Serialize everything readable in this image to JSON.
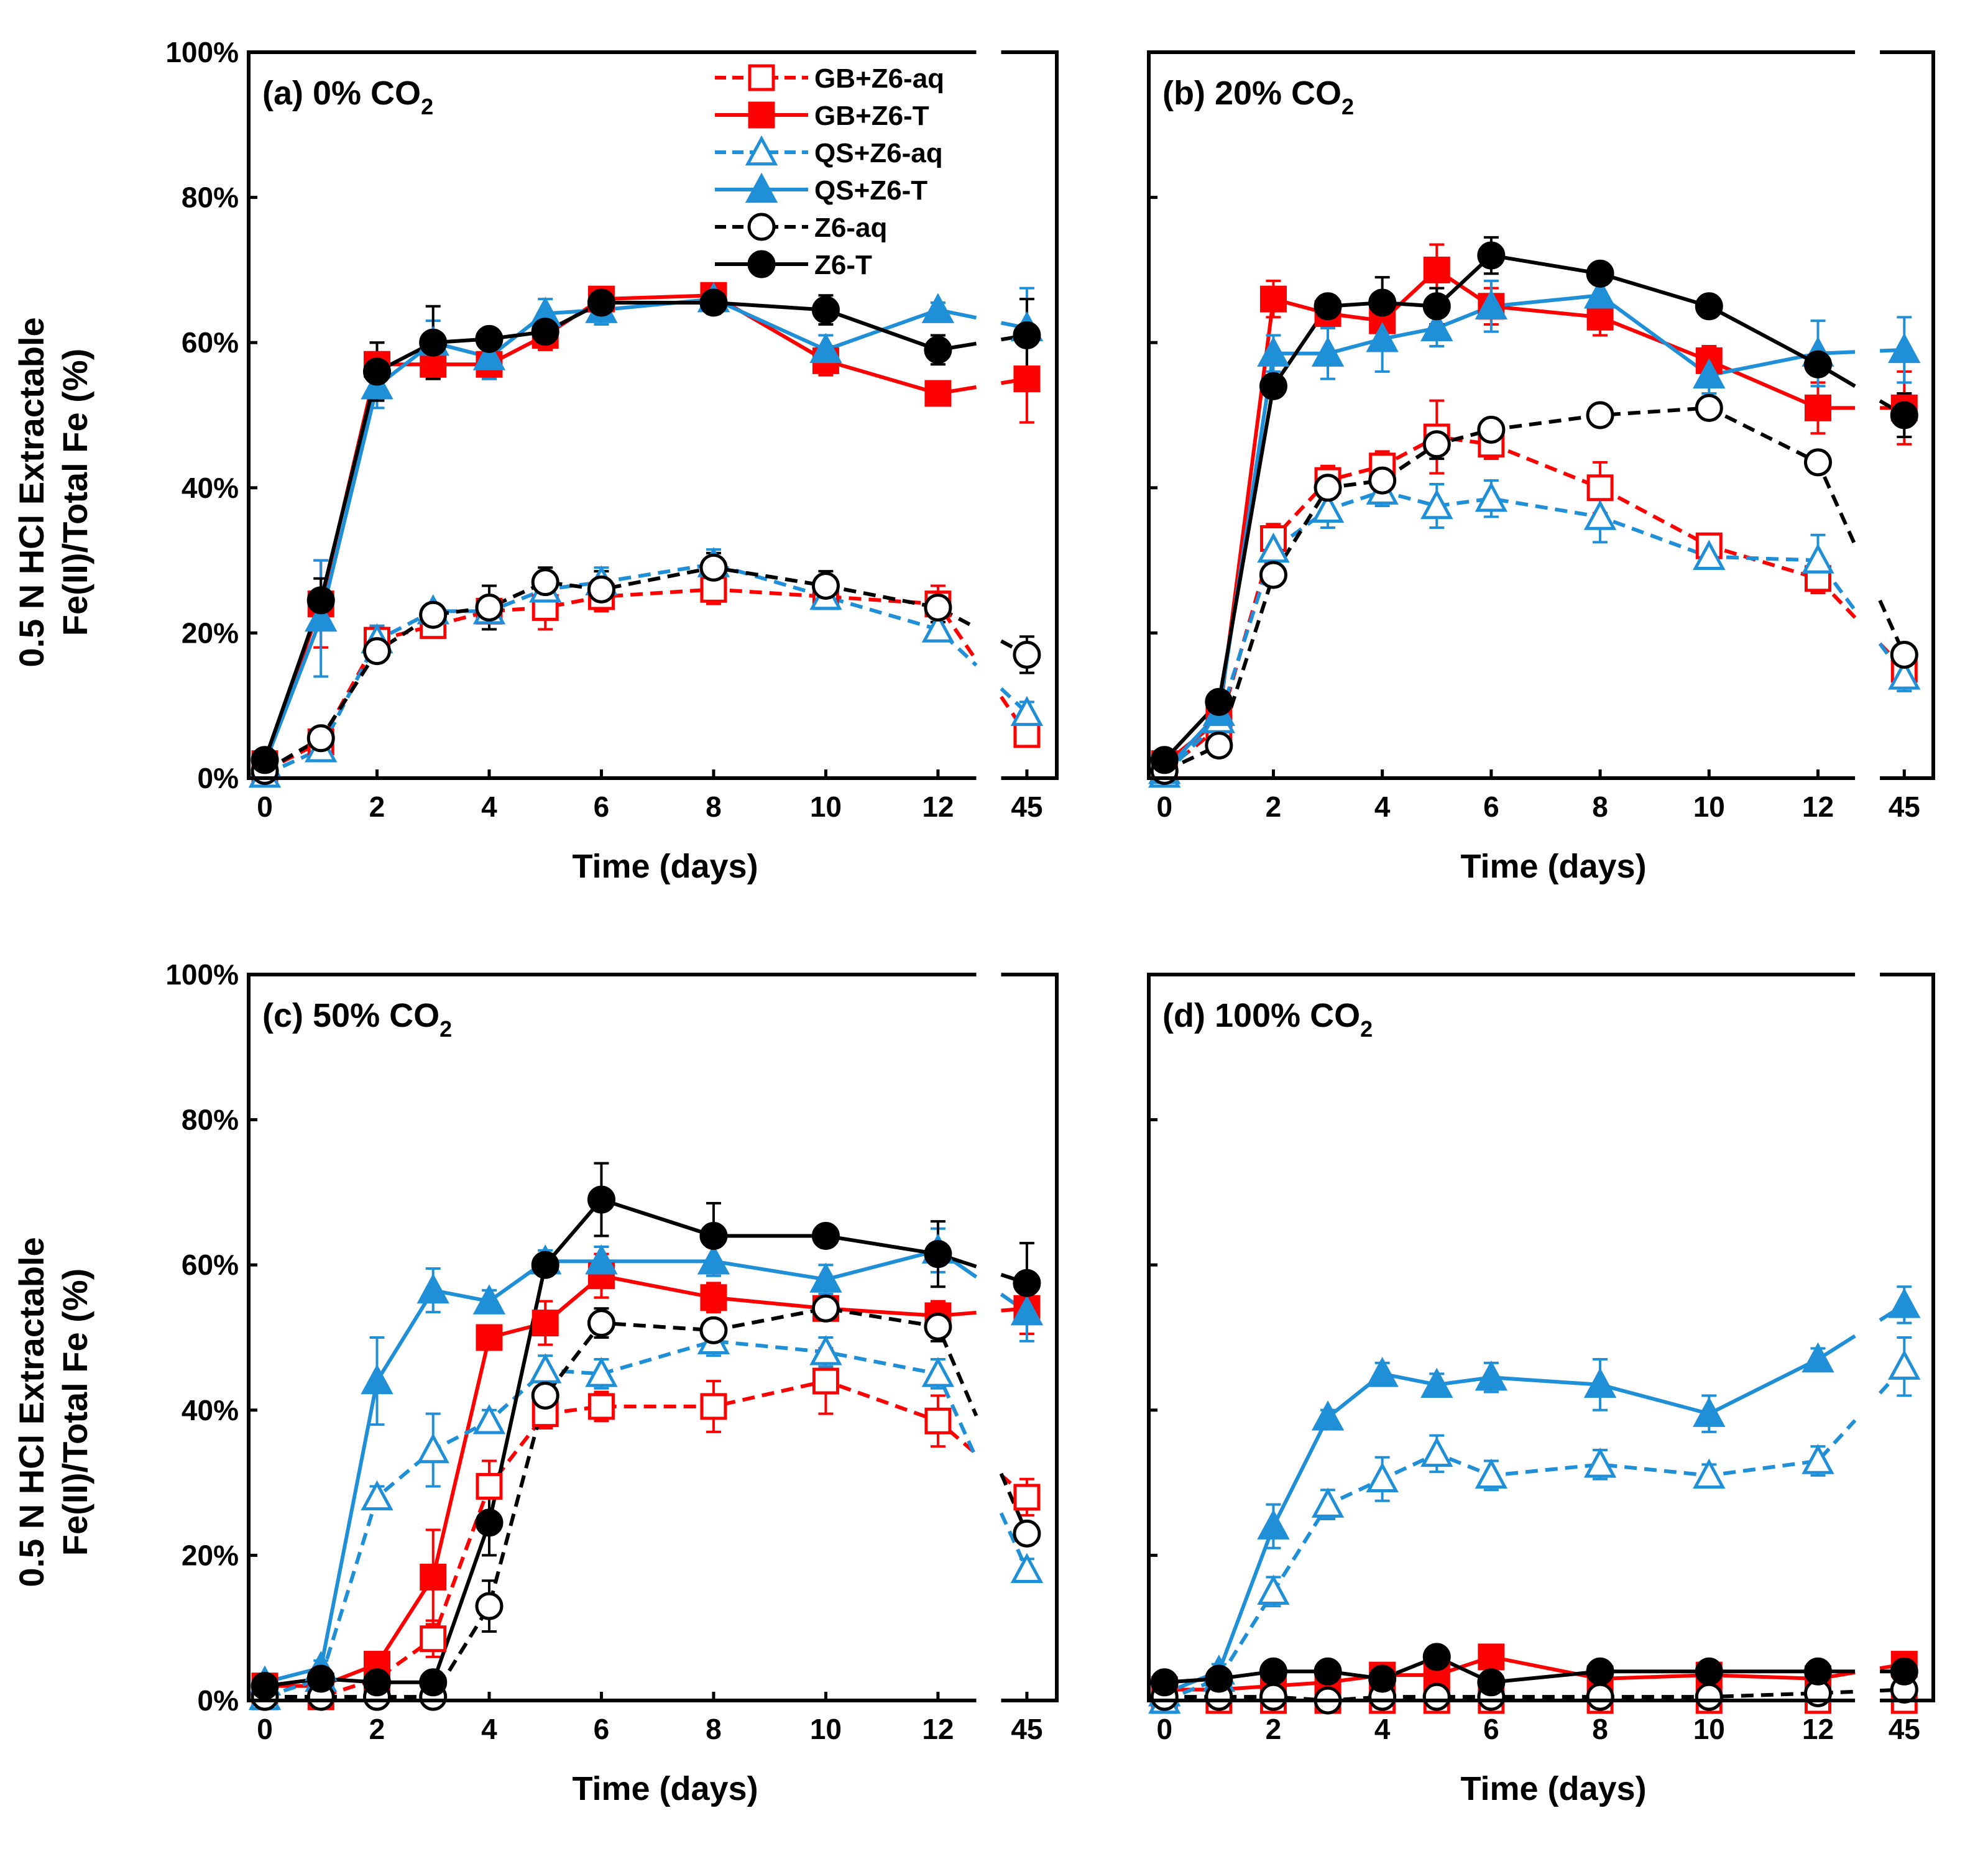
{
  "figure": {
    "ylabel_line1": "0.5 N HCl Extractable",
    "ylabel_line2": "Fe(II)/Total Fe (%)",
    "xlabel": "Time (days)",
    "y_ticks": [
      "0%",
      "20%",
      "40%",
      "60%",
      "80%",
      "100%"
    ],
    "x_ticks": [
      "0",
      "2",
      "4",
      "6",
      "8",
      "10",
      "12",
      "45"
    ]
  },
  "legend": {
    "items": [
      {
        "name": "GB+Z6-aq",
        "color": "#ff0000",
        "dash": true,
        "marker": "square",
        "filled": false
      },
      {
        "name": "GB+Z6-T",
        "color": "#ff0000",
        "dash": false,
        "marker": "square",
        "filled": true
      },
      {
        "name": "QS+Z6-aq",
        "color": "#1f8fd8",
        "dash": true,
        "marker": "triangle",
        "filled": false
      },
      {
        "name": "QS+Z6-T",
        "color": "#1f8fd8",
        "dash": false,
        "marker": "triangle",
        "filled": true
      },
      {
        "name": "Z6-aq",
        "color": "#000000",
        "dash": true,
        "marker": "circle",
        "filled": false
      },
      {
        "name": "Z6-T",
        "color": "#000000",
        "dash": false,
        "marker": "circle",
        "filled": true
      }
    ]
  },
  "chart_data": [
    {
      "type": "line",
      "title_main": "(a) 0% CO",
      "title_sub": "2",
      "xlabel": "Time (days)",
      "ylabel": "0.5 N HCl Extractable Fe(II)/Total Fe (%)",
      "ylim": [
        0,
        100
      ],
      "x_axis": "broken: 0-12 linear, then 45",
      "x": [
        0,
        1,
        2,
        3,
        4,
        5,
        6,
        8,
        10,
        12,
        45
      ],
      "series": [
        {
          "name": "GB+Z6-aq",
          "values": [
            1,
            5,
            19,
            21,
            23,
            23.5,
            25,
            26,
            25,
            24,
            6
          ],
          "errors": [
            1,
            1,
            1,
            1,
            1.5,
            3,
            2,
            2,
            1.5,
            2.5,
            1
          ]
        },
        {
          "name": "GB+Z6-T",
          "values": [
            2,
            24,
            57,
            57,
            57,
            61,
            66,
            66.5,
            57.5,
            53,
            55
          ],
          "errors": [
            1,
            6,
            3,
            2,
            2,
            2,
            1.5,
            1.5,
            2,
            1.5,
            6
          ]
        },
        {
          "name": "QS+Z6-aq",
          "values": [
            0.5,
            4,
            19,
            23,
            23,
            26,
            27,
            29.5,
            25,
            20.5,
            9
          ],
          "errors": [
            0.5,
            1.5,
            2,
            1,
            1,
            2,
            2,
            2,
            1.5,
            1.5,
            1.5
          ]
        },
        {
          "name": "QS+Z6-T",
          "values": [
            2,
            22,
            54,
            60,
            58,
            64,
            64.5,
            66,
            59,
            64.5,
            62
          ],
          "errors": [
            1,
            8,
            3,
            3,
            3,
            2,
            2,
            1.5,
            2,
            1,
            5.5
          ]
        },
        {
          "name": "Z6-aq",
          "values": [
            1,
            5.5,
            17.5,
            22.5,
            23.5,
            27,
            26,
            29,
            26.5,
            23.5,
            17
          ],
          "errors": [
            0.5,
            1,
            1.5,
            1,
            3,
            2,
            2.5,
            2,
            2,
            2,
            2.5
          ]
        },
        {
          "name": "Z6-T",
          "values": [
            2.5,
            24.5,
            56,
            60,
            60.5,
            61.5,
            65.5,
            65.5,
            64.5,
            59,
            61
          ],
          "errors": [
            1,
            3,
            4,
            5,
            1,
            1.5,
            1.5,
            1.5,
            2,
            2,
            5
          ]
        }
      ]
    },
    {
      "type": "line",
      "title_main": "(b) 20% CO",
      "title_sub": "2",
      "xlabel": "Time (days)",
      "ylabel": "0.5 N HCl Extractable Fe(II)/Total Fe (%)",
      "ylim": [
        0,
        100
      ],
      "x_axis": "broken: 0-12 linear, then 45",
      "x": [
        0,
        1,
        2,
        3,
        4,
        5,
        6,
        8,
        10,
        12,
        45
      ],
      "series": [
        {
          "name": "GB+Z6-aq",
          "values": [
            1,
            7,
            33,
            41,
            43,
            47,
            46,
            40,
            32,
            27.5,
            15
          ],
          "errors": [
            1,
            1.5,
            2,
            2,
            2,
            5,
            2,
            3.5,
            1.5,
            2,
            2
          ]
        },
        {
          "name": "GB+Z6-T",
          "values": [
            2,
            8,
            66,
            64,
            63,
            70,
            65,
            63.5,
            57.5,
            51,
            51
          ],
          "errors": [
            1,
            2,
            2.5,
            1.5,
            2.5,
            3.5,
            2.5,
            2.5,
            2,
            3.5,
            5
          ]
        },
        {
          "name": "QS+Z6-aq",
          "values": [
            0.5,
            8,
            31.5,
            37,
            39.5,
            37.5,
            38.5,
            36,
            30.5,
            30,
            14
          ],
          "errors": [
            0.5,
            1.5,
            2,
            2.5,
            2,
            3,
            2.5,
            3.5,
            1.5,
            3.5,
            2
          ]
        },
        {
          "name": "QS+Z6-T",
          "values": [
            1,
            9,
            58.5,
            58.5,
            60.5,
            62,
            65,
            66.5,
            55.5,
            58.5,
            59
          ],
          "errors": [
            0.5,
            2,
            2.5,
            3.5,
            4.5,
            2.5,
            3.5,
            2,
            2.5,
            4.5,
            4.5
          ]
        },
        {
          "name": "Z6-aq",
          "values": [
            1,
            4.5,
            28,
            40,
            41,
            46,
            48,
            50,
            51,
            43.5,
            17
          ],
          "errors": [
            0.5,
            0.5,
            1.5,
            1.5,
            1.5,
            2,
            1.5,
            1.5,
            1.5,
            1.5,
            1.5
          ]
        },
        {
          "name": "Z6-T",
          "values": [
            2.5,
            10.5,
            54,
            65,
            65.5,
            65,
            72,
            69.5,
            65,
            57,
            50
          ],
          "errors": [
            1,
            1,
            1.5,
            1.5,
            3.5,
            2.5,
            2.5,
            1.5,
            1.5,
            1.5,
            3
          ]
        }
      ]
    },
    {
      "type": "line",
      "title_main": "(c) 50% CO",
      "title_sub": "2",
      "xlabel": "Time (days)",
      "ylabel": "0.5 N HCl Extractable Fe(II)/Total Fe (%)",
      "ylim": [
        0,
        100
      ],
      "x_axis": "broken: 0-12 linear, then 45",
      "x": [
        0,
        1,
        2,
        3,
        4,
        5,
        6,
        8,
        10,
        12,
        45
      ],
      "series": [
        {
          "name": "GB+Z6-aq",
          "values": [
            0.5,
            0.5,
            3,
            8.5,
            29.5,
            39.5,
            40.5,
            40.5,
            44,
            38.5,
            28
          ],
          "errors": [
            0.5,
            0.5,
            1,
            2.5,
            3.5,
            2,
            2,
            3.5,
            4.5,
            3.5,
            2.5
          ]
        },
        {
          "name": "GB+Z6-T",
          "values": [
            2,
            2,
            5,
            17,
            50,
            52,
            58.5,
            55.5,
            54,
            53,
            54
          ],
          "errors": [
            1,
            1,
            1.5,
            6.5,
            1.5,
            3,
            3,
            2,
            1.5,
            2,
            3.5
          ]
        },
        {
          "name": "QS+Z6-aq",
          "values": [
            0.5,
            3,
            28,
            34.5,
            38.5,
            45.5,
            45,
            49.5,
            48,
            45,
            18
          ],
          "errors": [
            0.5,
            1,
            1.5,
            5,
            1.5,
            2,
            2,
            2,
            2,
            2,
            1.5
          ]
        },
        {
          "name": "QS+Z6-T",
          "values": [
            2.5,
            4.5,
            44,
            56.5,
            55,
            60.5,
            60.5,
            60.5,
            58,
            62,
            53.5
          ],
          "errors": [
            1,
            1,
            6,
            3,
            1.5,
            1.5,
            2,
            2,
            2,
            3,
            4
          ]
        },
        {
          "name": "Z6-aq",
          "values": [
            0.5,
            0.5,
            0.5,
            0.5,
            13,
            42,
            52,
            51,
            54,
            51.5,
            23
          ],
          "errors": [
            0.5,
            0.5,
            0.5,
            0.5,
            3.5,
            2,
            2,
            1.5,
            1.5,
            2,
            1.5
          ]
        },
        {
          "name": "Z6-T",
          "values": [
            2,
            3,
            2.5,
            2.5,
            24.5,
            60,
            69,
            64,
            64,
            61.5,
            57.5
          ],
          "errors": [
            1,
            1,
            1,
            1,
            4.5,
            1.5,
            5,
            4.5,
            1.5,
            4.5,
            5.5
          ]
        }
      ]
    },
    {
      "type": "line",
      "title_main": "(d) 100% CO",
      "title_sub": "2",
      "xlabel": "Time (days)",
      "ylabel": "0.5 N HCl Extractable Fe(II)/Total Fe (%)",
      "ylim": [
        0,
        100
      ],
      "x_axis": "broken: 0-12 linear, then 45",
      "x": [
        0,
        1,
        2,
        3,
        4,
        5,
        6,
        8,
        10,
        12,
        45
      ],
      "series": [
        {
          "name": "GB+Z6-aq",
          "values": [
            0,
            0,
            0,
            0,
            0,
            0,
            0,
            0,
            0,
            0,
            0
          ],
          "errors": [
            0.5,
            0.5,
            0.5,
            0.5,
            0.5,
            0.5,
            0.5,
            0.5,
            0.5,
            0.5,
            0.5
          ]
        },
        {
          "name": "GB+Z6-T",
          "values": [
            1.5,
            1.5,
            2,
            2.5,
            3.5,
            3.5,
            6,
            3,
            3.5,
            3,
            5
          ],
          "errors": [
            0.5,
            0.5,
            0.5,
            0.5,
            0.5,
            1,
            1,
            0.5,
            0.5,
            0.5,
            1
          ]
        },
        {
          "name": "QS+Z6-aq",
          "values": [
            0,
            3,
            15,
            27,
            30.5,
            34,
            31,
            32.5,
            31,
            33,
            46
          ],
          "errors": [
            0.5,
            1,
            2,
            2,
            3,
            2.5,
            2,
            2,
            1.5,
            2,
            4
          ]
        },
        {
          "name": "QS+Z6-T",
          "values": [
            1,
            4,
            24,
            39,
            45,
            43.5,
            44.5,
            43.5,
            39.5,
            47,
            54.5
          ],
          "errors": [
            0.5,
            1,
            3,
            1,
            1.5,
            1.5,
            2,
            3.5,
            2.5,
            1.5,
            2.5
          ]
        },
        {
          "name": "Z6-aq",
          "values": [
            0.5,
            0.5,
            0.5,
            0,
            0.5,
            0.5,
            0.5,
            0.5,
            0.5,
            1,
            1.5
          ],
          "errors": [
            0.5,
            0.5,
            0.5,
            0.5,
            0.5,
            0.5,
            0.5,
            0.5,
            0.5,
            0.5,
            0.5
          ]
        },
        {
          "name": "Z6-T",
          "values": [
            2.5,
            3,
            4,
            4,
            3,
            6,
            2.5,
            4,
            4,
            4,
            4
          ],
          "errors": [
            0.5,
            0.5,
            0.5,
            0.5,
            0.5,
            0.5,
            0.5,
            0.5,
            0.5,
            0.5,
            0.5
          ]
        }
      ]
    }
  ]
}
